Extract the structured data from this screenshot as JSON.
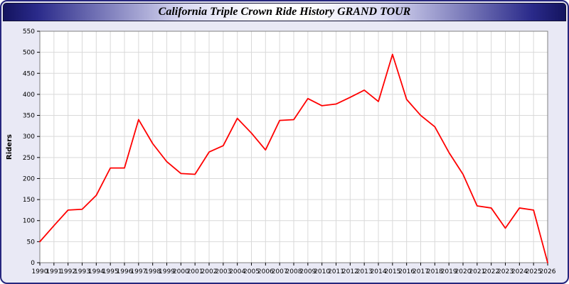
{
  "window": {
    "title": "California Triple Crown Ride History GRAND TOUR"
  },
  "colors": {
    "frame_border": "#26267e",
    "page_background": "#e9e9f5",
    "plot_background": "#ffffff",
    "gridline": "#d9d9d9",
    "axis": "#808080",
    "line": "#ff0000"
  },
  "chart_data": {
    "type": "line",
    "title": "California Triple Crown Ride History GRAND TOUR",
    "xlabel": "",
    "ylabel": "Riders",
    "ylim": [
      0,
      550
    ],
    "ytick_step": 50,
    "grid": true,
    "legend": "none",
    "line_color": "#ff0000",
    "categories": [
      1990,
      1991,
      1992,
      1993,
      1994,
      1995,
      1996,
      1997,
      1998,
      1999,
      2000,
      2001,
      2002,
      2003,
      2004,
      2005,
      2006,
      2007,
      2008,
      2009,
      2010,
      2011,
      2012,
      2013,
      2014,
      2015,
      2016,
      2017,
      2018,
      2019,
      2020,
      2021,
      2022,
      2023,
      2024,
      2025,
      2026
    ],
    "values": [
      50,
      88,
      125,
      127,
      160,
      225,
      225,
      340,
      283,
      240,
      212,
      210,
      263,
      278,
      343,
      308,
      268,
      338,
      340,
      390,
      373,
      377,
      393,
      410,
      383,
      495,
      388,
      350,
      323,
      262,
      210,
      135,
      130,
      82,
      130,
      125,
      0
    ]
  }
}
